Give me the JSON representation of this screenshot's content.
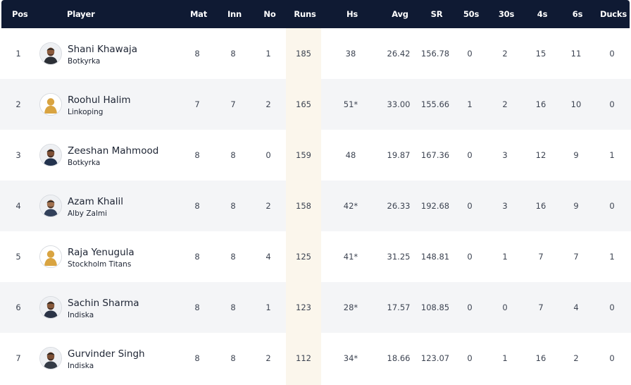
{
  "columns": {
    "pos": "Pos",
    "player": "Player",
    "mat": "Mat",
    "inn": "Inn",
    "no": "No",
    "runs": "Runs",
    "hs": "Hs",
    "avg": "Avg",
    "sr": "SR",
    "fifties": "50s",
    "thirties": "30s",
    "fours": "4s",
    "sixes": "6s",
    "ducks": "Ducks"
  },
  "colors": {
    "header_bg": "#0f1a33",
    "runs_highlight": "#fbf6ec",
    "row_stripe": "#f4f5f7"
  },
  "rows": [
    {
      "pos": "1",
      "name": "Shani Khawaja",
      "team": "Botkyrka",
      "mat": "8",
      "inn": "8",
      "no": "1",
      "runs": "185",
      "hs": "38",
      "avg": "26.42",
      "sr": "156.78",
      "fifties": "0",
      "thirties": "2",
      "fours": "15",
      "sixes": "11",
      "ducks": "0",
      "avatar": "player-photo-icon"
    },
    {
      "pos": "2",
      "name": "Roohul Halim",
      "team": "Linkoping",
      "mat": "7",
      "inn": "7",
      "no": "2",
      "runs": "165",
      "hs": "51*",
      "avg": "33.00",
      "sr": "155.66",
      "fifties": "1",
      "thirties": "2",
      "fours": "16",
      "sixes": "10",
      "ducks": "0",
      "avatar": "placeholder-silhouette-icon"
    },
    {
      "pos": "3",
      "name": "Zeeshan Mahmood",
      "team": "Botkyrka",
      "mat": "8",
      "inn": "8",
      "no": "0",
      "runs": "159",
      "hs": "48",
      "avg": "19.87",
      "sr": "167.36",
      "fifties": "0",
      "thirties": "3",
      "fours": "12",
      "sixes": "9",
      "ducks": "1",
      "avatar": "player-photo-icon"
    },
    {
      "pos": "4",
      "name": "Azam Khalil",
      "team": "Alby Zalmi",
      "mat": "8",
      "inn": "8",
      "no": "2",
      "runs": "158",
      "hs": "42*",
      "avg": "26.33",
      "sr": "192.68",
      "fifties": "0",
      "thirties": "3",
      "fours": "16",
      "sixes": "9",
      "ducks": "0",
      "avatar": "player-photo-icon"
    },
    {
      "pos": "5",
      "name": "Raja Yenugula",
      "team": "Stockholm Titans",
      "mat": "8",
      "inn": "8",
      "no": "4",
      "runs": "125",
      "hs": "41*",
      "avg": "31.25",
      "sr": "148.81",
      "fifties": "0",
      "thirties": "1",
      "fours": "7",
      "sixes": "7",
      "ducks": "1",
      "avatar": "placeholder-silhouette-icon"
    },
    {
      "pos": "6",
      "name": "Sachin Sharma",
      "team": "Indiska",
      "mat": "8",
      "inn": "8",
      "no": "1",
      "runs": "123",
      "hs": "28*",
      "avg": "17.57",
      "sr": "108.85",
      "fifties": "0",
      "thirties": "0",
      "fours": "7",
      "sixes": "4",
      "ducks": "0",
      "avatar": "player-photo-icon"
    },
    {
      "pos": "7",
      "name": "Gurvinder Singh",
      "team": "Indiska",
      "mat": "8",
      "inn": "8",
      "no": "2",
      "runs": "112",
      "hs": "34*",
      "avg": "18.66",
      "sr": "123.07",
      "fifties": "0",
      "thirties": "1",
      "fours": "16",
      "sixes": "2",
      "ducks": "0",
      "avatar": "player-photo-icon"
    }
  ]
}
